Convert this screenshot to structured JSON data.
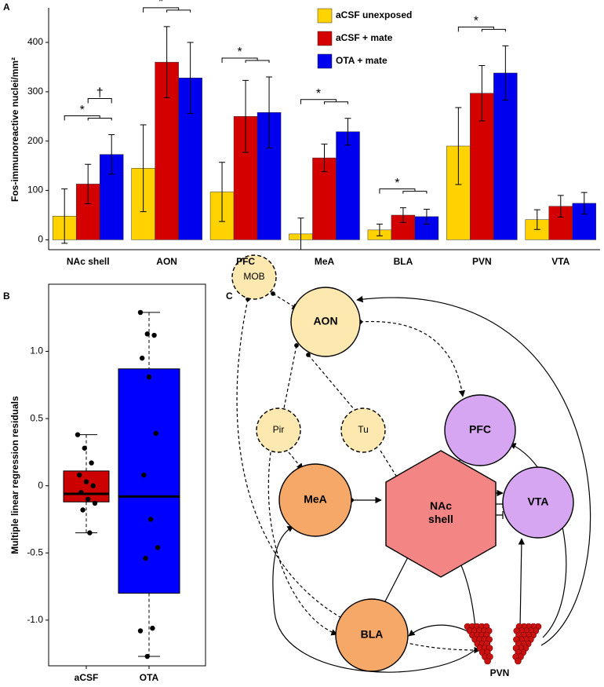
{
  "chart_data": [
    {
      "type": "bar",
      "panel": "A",
      "y_label": "Fos-immunoreactive nuclei/mm²",
      "categories": [
        "NAc shell",
        "AON",
        "PFC",
        "MeA",
        "BLA",
        "PVN",
        "VTA"
      ],
      "series": [
        {
          "name": "aCSF unexposed",
          "color": "#ffd200",
          "values": [
            48,
            145,
            97,
            12,
            20,
            190,
            41
          ],
          "errors": [
            55,
            88,
            60,
            32,
            12,
            78,
            20
          ]
        },
        {
          "name": "aCSF + mate",
          "color": "#d40000",
          "values": [
            113,
            360,
            250,
            166,
            50,
            297,
            68
          ],
          "errors": [
            40,
            72,
            73,
            28,
            15,
            56,
            22
          ]
        },
        {
          "name": "OTA + mate",
          "color": "#0000ee",
          "values": [
            173,
            328,
            258,
            219,
            47,
            338,
            74
          ],
          "errors": [
            40,
            72,
            72,
            27,
            15,
            55,
            22
          ]
        }
      ],
      "annotations": [
        {
          "text": "*",
          "at": 0
        },
        {
          "text": "†",
          "at": 0
        },
        {
          "text": "*",
          "at": 1
        },
        {
          "text": "*",
          "at": 2
        },
        {
          "text": "*",
          "at": 3
        },
        {
          "text": "*",
          "at": 4
        },
        {
          "text": "*",
          "at": 5
        }
      ],
      "ylim": [
        -20,
        470
      ],
      "yticks": [
        0,
        100,
        200,
        300,
        400
      ]
    },
    {
      "type": "box",
      "panel": "B",
      "y_label": "Multiple linear regression residuals",
      "categories": [
        "aCSF",
        "OTA"
      ],
      "boxes": [
        {
          "color": "#cc0000",
          "whisker_low": -0.35,
          "q1": -0.12,
          "median": -0.06,
          "q3": 0.11,
          "whisker_high": 0.38,
          "points": [
            0.38,
            0.28,
            0.17,
            0.08,
            0.03,
            0.0,
            -0.05,
            -0.1,
            -0.13,
            -0.18,
            -0.35
          ]
        },
        {
          "color": "#0000ff",
          "whisker_low": -1.27,
          "q1": -0.8,
          "median": -0.08,
          "q3": 0.87,
          "whisker_high": 1.29,
          "points": [
            1.29,
            1.13,
            1.12,
            0.95,
            0.81,
            0.39,
            0.08,
            -0.25,
            -0.46,
            -0.54,
            -1.06,
            -1.08,
            -1.27
          ]
        }
      ],
      "ylim": [
        -1.34,
        1.5
      ],
      "yticks": [
        {
          "value": 1,
          "label": "1.0"
        },
        0.5,
        0,
        -0.5,
        {
          "value": -1,
          "label": "-1.0"
        }
      ]
    }
  ],
  "diagram": {
    "panel": "C",
    "nodes": [
      "MOB",
      "AON",
      "Pir",
      "Tu",
      "PFC",
      "MeA",
      "NAc shell",
      "VTA",
      "BLA",
      "PVN"
    ]
  }
}
